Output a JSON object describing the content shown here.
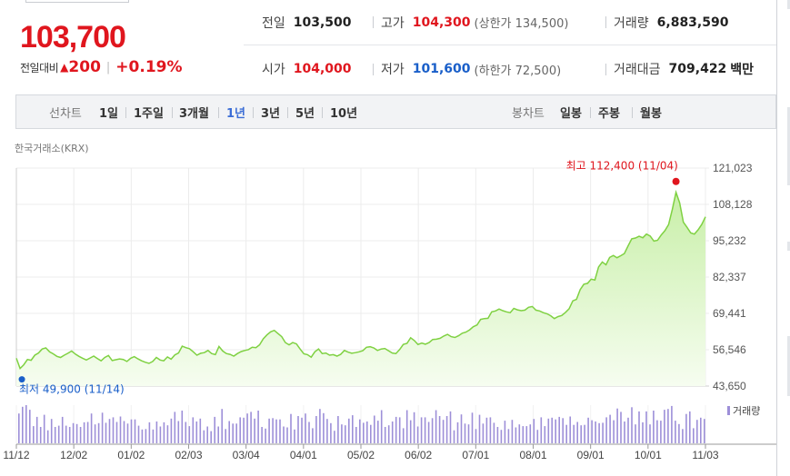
{
  "quote": {
    "price": "103,700",
    "change_label": "전일대비",
    "change_arrow": "▲",
    "change_value": "200",
    "change_sep": "|",
    "change_pct": "+0.19%",
    "prev_close_label": "전일",
    "prev_close": "103,500",
    "high_label": "고가",
    "high": "104,300",
    "upper_limit": "(상한가 134,500)",
    "volume_label": "거래량",
    "volume": "6,883,590",
    "open_label": "시가",
    "open": "104,000",
    "low_label": "저가",
    "low": "101,600",
    "lower_limit": "(하한가 72,500)",
    "trade_value_label": "거래대금",
    "trade_value": "709,422",
    "trade_value_unit": "백만"
  },
  "period_bar": {
    "line_label": "선차트",
    "line_periods": [
      "1일",
      "1주일",
      "3개월",
      "1년",
      "3년",
      "5년",
      "10년"
    ],
    "active_period": "1년",
    "candle_label": "봉차트",
    "candle_periods": [
      "일봉",
      "주봉",
      "월봉"
    ]
  },
  "exchange_label": "한국거래소(KRX)",
  "chart_data": {
    "type": "area",
    "x_ticks": [
      "11/12",
      "12/02",
      "01/02",
      "02/03",
      "03/04",
      "04/01",
      "05/02",
      "06/02",
      "07/01",
      "08/01",
      "09/01",
      "10/01",
      "11/03"
    ],
    "y_ticks": [
      "121,023",
      "108,128",
      "95,232",
      "82,337",
      "69,441",
      "56,546",
      "43,650"
    ],
    "ylim": [
      43650,
      121023
    ],
    "high_annotation": "최고 112,400 (11/04)",
    "low_annotation": "최저 49,900 (11/14)",
    "volume_legend": "거래량",
    "colors": {
      "line": "#7fd142",
      "fill_top": "#c8efa8",
      "fill_bottom": "#f6fdf0",
      "high": "#e0161e",
      "low": "#1a5fc9",
      "volume": "#9d8fd8"
    },
    "prices": [
      53500,
      49900,
      51200,
      53100,
      52800,
      54600,
      55400,
      56800,
      57200,
      55800,
      55100,
      54200,
      53800,
      54600,
      55300,
      56100,
      55000,
      54200,
      53500,
      52900,
      53600,
      54300,
      53400,
      52600,
      53800,
      54500,
      52700,
      53000,
      53300,
      53100,
      52400,
      53500,
      54100,
      53300,
      52600,
      52100,
      51700,
      52400,
      53800,
      52900,
      52600,
      54000,
      53200,
      54700,
      55400,
      57800,
      57300,
      56900,
      55800,
      54600,
      55300,
      55500,
      56300,
      55200,
      54800,
      57700,
      56100,
      55200,
      54900,
      54300,
      55200,
      55900,
      56300,
      56600,
      57400,
      57300,
      58300,
      60400,
      61800,
      62900,
      63400,
      62300,
      61200,
      59100,
      58300,
      59100,
      58600,
      56800,
      55100,
      54800,
      53900,
      55800,
      56800,
      55200,
      55400,
      54600,
      54800,
      54300,
      54900,
      56300,
      55700,
      55300,
      55500,
      55800,
      56200,
      57400,
      57600,
      57200,
      56300,
      56800,
      57000,
      56200,
      55400,
      55200,
      56600,
      58400,
      58800,
      60800,
      59800,
      58400,
      58900,
      58500,
      59100,
      60200,
      60300,
      60600,
      61400,
      62000,
      61200,
      60900,
      61500,
      62400,
      62800,
      63600,
      64700,
      65300,
      67300,
      67600,
      67700,
      70000,
      70300,
      71000,
      70400,
      70000,
      69700,
      71200,
      70700,
      70400,
      70600,
      71600,
      71900,
      70600,
      70300,
      69700,
      69300,
      68600,
      67600,
      68300,
      68700,
      69800,
      71100,
      73900,
      74400,
      77900,
      79800,
      80100,
      81600,
      81300,
      85900,
      87700,
      86700,
      89300,
      90000,
      89200,
      89900,
      90700,
      93400,
      95900,
      96200,
      96800,
      96300,
      97600,
      96900,
      95100,
      95400,
      97300,
      98800,
      101000,
      106300,
      112400,
      108700,
      101800,
      100000,
      98000,
      97600,
      99100,
      101000,
      103700
    ],
    "volumes": [
      0.71,
      0.87,
      0.91,
      0.8,
      0.41,
      0.63,
      0.39,
      0.68,
      0.31,
      0.58,
      0.39,
      0.42,
      0.63,
      0.42,
      0.39,
      0.48,
      0.46,
      0.39,
      0.5,
      0.51,
      0.71,
      0.45,
      0.48,
      0.73,
      0.49,
      0.58,
      0.62,
      0.51,
      0.64,
      0.53,
      0.47,
      0.57,
      0.57,
      0.42,
      0.33,
      0.34,
      0.5,
      0.33,
      0.52,
      0.4,
      0.5,
      0.43,
      0.59,
      0.75,
      0.53,
      0.78,
      0.51,
      0.41,
      0.62,
      0.52,
      0.59,
      0.31,
      0.4,
      0.29,
      0.63,
      0.4,
      0.82,
      0.34,
      0.53,
      0.47,
      0.47,
      0.62,
      0.61,
      0.71,
      0.75,
      0.59,
      0.78,
      0.39,
      0.35,
      0.59,
      0.6,
      0.57,
      0.57,
      0.4,
      0.38,
      0.7,
      0.33,
      0.65,
      0.61,
      0.71,
      0.51,
      0.36,
      0.65,
      0.82,
      0.72,
      0.58,
      0.48,
      0.3,
      0.65,
      0.45,
      0.43,
      0.59,
      0.67,
      0.39,
      0.57,
      0.49,
      0.52,
      0.44,
      0.66,
      0.54,
      0.79,
      0.39,
      0.43,
      0.52,
      0.63,
      0.62,
      0.36,
      0.79,
      0.55,
      0.74,
      0.4,
      0.62,
      0.62,
      0.51,
      0.6,
      0.79,
      0.65,
      0.56,
      0.65,
      0.76,
      0.31,
      0.5,
      0.69,
      0.47,
      0.45,
      0.73,
      0.34,
      0.68,
      0.47,
      0.61,
      0.62,
      0.49,
      0.39,
      0.32,
      0.54,
      0.34,
      0.56,
      0.38,
      0.45,
      0.41,
      0.41,
      0.45,
      0.58,
      0.32,
      0.62,
      0.41,
      0.59,
      0.61,
      0.57,
      0.63,
      0.6,
      0.44,
      0.64,
      0.44,
      0.51,
      0.43,
      0.44,
      0.61,
      0.55,
      0.52,
      0.48,
      0.49,
      0.62,
      0.68,
      0.55,
      0.83,
      0.75,
      0.52,
      0.61,
      0.86,
      0.45,
      0.76,
      0.5,
      0.76,
      0.45,
      0.78,
      0.55,
      0.54,
      0.8,
      0.82,
      0.89,
      0.54,
      0.46,
      0.34,
      0.7,
      0.76,
      0.36,
      0.56,
      0.61,
      0.58
    ]
  }
}
